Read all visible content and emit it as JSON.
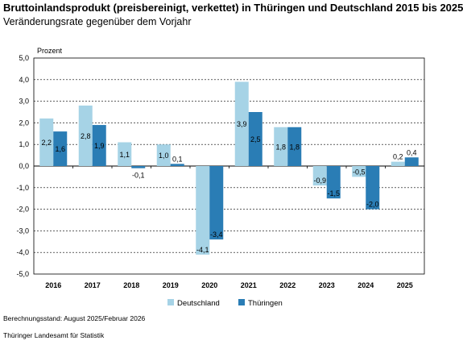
{
  "title": "Bruttoinlandsprodukt (preisbereinigt, verkettet) in Thüringen und Deutschland 2015 bis 2025",
  "subtitle": "Veränderungsrate gegenüber dem Vorjahr",
  "footnote": "Berechnungsstand: August 2025/Februar 2026",
  "source": "Thüringer Landesamt für Statistik",
  "chart_data": {
    "type": "bar",
    "ylabel": "Prozent",
    "ylim": [
      -5,
      5
    ],
    "yticks": [
      "5,0",
      "4,0",
      "3,0",
      "2,0",
      "1,0",
      "0,0",
      "-1,0",
      "-2,0",
      "-3,0",
      "-4,0",
      "-5,0"
    ],
    "categories": [
      "2016",
      "2017",
      "2018",
      "2019",
      "2020",
      "2021",
      "2022",
      "2023",
      "2024",
      "2025"
    ],
    "grid": true,
    "legend_position": "bottom-center",
    "series": [
      {
        "name": "Deutschland",
        "color": "#a6d3e6",
        "values": [
          2.2,
          2.8,
          1.1,
          1.0,
          -4.1,
          3.9,
          1.8,
          -0.9,
          -0.5,
          0.2
        ],
        "labels": [
          "2,2",
          "2,8",
          "1,1",
          "1,0",
          "-4,1",
          "3,9",
          "1,8",
          "-0,9",
          "-0,5",
          "0,2"
        ]
      },
      {
        "name": "Thüringen",
        "color": "#2a7db5",
        "values": [
          1.6,
          1.9,
          -0.1,
          0.1,
          -3.4,
          2.5,
          1.8,
          -1.5,
          -2.0,
          0.4
        ],
        "labels": [
          "1,6",
          "1,9",
          "-0,1",
          "0,1",
          "-3,4",
          "2,5",
          "1,8",
          "-1,5",
          "-2,0",
          "0,4"
        ]
      }
    ]
  }
}
